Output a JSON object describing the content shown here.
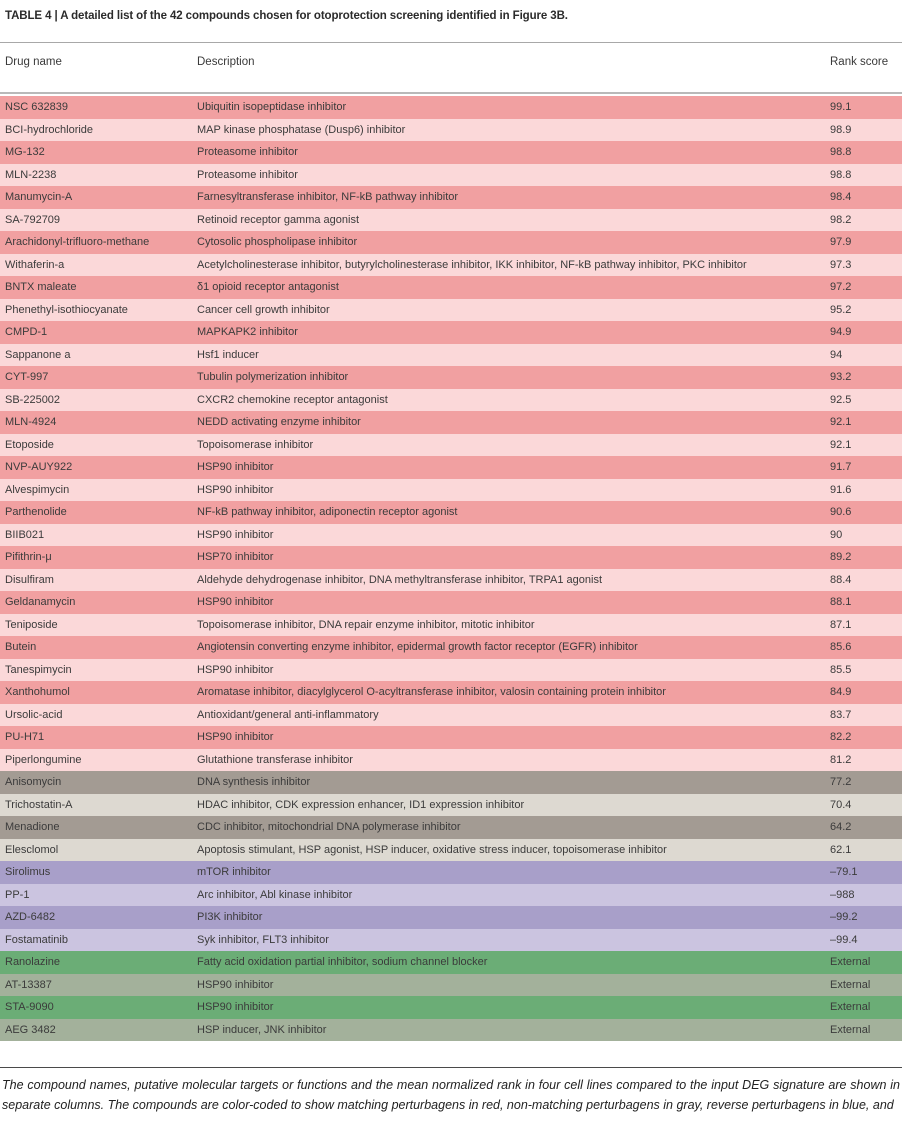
{
  "title": "TABLE 4 | A detailed list of the 42 compounds chosen for otoprotection screening identified in Figure 3B.",
  "table": {
    "columns": {
      "drug_name": "Drug name",
      "description": "Description",
      "rank_score": "Rank score"
    },
    "colors": {
      "red_dark": "#f1a0a1",
      "red_light": "#fbd8d9",
      "gray_dark": "#a39b93",
      "gray_light": "#ddd9d1",
      "blue_dark": "#a89fc9",
      "blue_light": "#cbc4e0",
      "green_dark": "#6bad76",
      "green_light": "#a3b19b"
    },
    "legend_meaning": {
      "red": "matching perturbagens",
      "gray": "non-matching perturbagens",
      "blue": "reverse perturbagens",
      "green": "external"
    },
    "rows": [
      {
        "name": "NSC 632839",
        "description": "Ubiquitin isopeptidase inhibitor",
        "score": "99.1",
        "color": "red_dark"
      },
      {
        "name": "BCI-hydrochloride",
        "description": "MAP kinase phosphatase (Dusp6) inhibitor",
        "score": "98.9",
        "color": "red_light"
      },
      {
        "name": "MG-132",
        "description": "Proteasome inhibitor",
        "score": "98.8",
        "color": "red_dark"
      },
      {
        "name": "MLN-2238",
        "description": "Proteasome inhibitor",
        "score": "98.8",
        "color": "red_light"
      },
      {
        "name": "Manumycin-A",
        "description": "Farnesyltransferase inhibitor, NF-kB pathway inhibitor",
        "score": "98.4",
        "color": "red_dark"
      },
      {
        "name": "SA-792709",
        "description": "Retinoid receptor gamma agonist",
        "score": "98.2",
        "color": "red_light"
      },
      {
        "name": "Arachidonyl-trifluoro-methane",
        "description": "Cytosolic phospholipase inhibitor",
        "score": "97.9",
        "color": "red_dark"
      },
      {
        "name": "Withaferin-a",
        "description": "Acetylcholinesterase inhibitor, butyrylcholinesterase inhibitor, IKK inhibitor, NF-kB pathway inhibitor, PKC inhibitor",
        "score": "97.3",
        "color": "red_light"
      },
      {
        "name": "BNTX maleate",
        "description": "δ1 opioid receptor antagonist",
        "score": "97.2",
        "color": "red_dark"
      },
      {
        "name": "Phenethyl-isothiocyanate",
        "description": "Cancer cell growth inhibitor",
        "score": "95.2",
        "color": "red_light"
      },
      {
        "name": "CMPD-1",
        "description": "MAPKAPK2 inhibitor",
        "score": "94.9",
        "color": "red_dark"
      },
      {
        "name": "Sappanone a",
        "description": "Hsf1 inducer",
        "score": "94",
        "color": "red_light"
      },
      {
        "name": "CYT-997",
        "description": "Tubulin polymerization inhibitor",
        "score": "93.2",
        "color": "red_dark"
      },
      {
        "name": "SB-225002",
        "description": "CXCR2 chemokine receptor antagonist",
        "score": "92.5",
        "color": "red_light"
      },
      {
        "name": "MLN-4924",
        "description": "NEDD activating enzyme inhibitor",
        "score": "92.1",
        "color": "red_dark"
      },
      {
        "name": "Etoposide",
        "description": "Topoisomerase inhibitor",
        "score": "92.1",
        "color": "red_light"
      },
      {
        "name": "NVP-AUY922",
        "description": "HSP90 inhibitor",
        "score": "91.7",
        "color": "red_dark"
      },
      {
        "name": "Alvespimycin",
        "description": "HSP90 inhibitor",
        "score": "91.6",
        "color": "red_light"
      },
      {
        "name": "Parthenolide",
        "description": "NF-kB pathway inhibitor, adiponectin receptor agonist",
        "score": "90.6",
        "color": "red_dark"
      },
      {
        "name": "BIIB021",
        "description": "HSP90 inhibitor",
        "score": "90",
        "color": "red_light"
      },
      {
        "name": "Pifithrin-μ",
        "description": "HSP70 inhibitor",
        "score": "89.2",
        "color": "red_dark"
      },
      {
        "name": "Disulfiram",
        "description": "Aldehyde dehydrogenase inhibitor, DNA methyltransferase inhibitor, TRPA1 agonist",
        "score": "88.4",
        "color": "red_light"
      },
      {
        "name": "Geldanamycin",
        "description": "HSP90 inhibitor",
        "score": "88.1",
        "color": "red_dark"
      },
      {
        "name": "Teniposide",
        "description": "Topoisomerase inhibitor, DNA repair enzyme inhibitor, mitotic inhibitor",
        "score": "87.1",
        "color": "red_light"
      },
      {
        "name": "Butein",
        "description": "Angiotensin converting enzyme inhibitor, epidermal growth factor receptor (EGFR) inhibitor",
        "score": "85.6",
        "color": "red_dark"
      },
      {
        "name": "Tanespimycin",
        "description": "HSP90 inhibitor",
        "score": "85.5",
        "color": "red_light"
      },
      {
        "name": "Xanthohumol",
        "description": "Aromatase inhibitor, diacylglycerol O-acyltransferase inhibitor, valosin containing protein inhibitor",
        "score": "84.9",
        "color": "red_dark"
      },
      {
        "name": "Ursolic-acid",
        "description": "Antioxidant/general anti-inflammatory",
        "score": "83.7",
        "color": "red_light"
      },
      {
        "name": "PU-H71",
        "description": "HSP90 inhibitor",
        "score": "82.2",
        "color": "red_dark"
      },
      {
        "name": "Piperlongumine",
        "description": "Glutathione transferase inhibitor",
        "score": "81.2",
        "color": "red_light"
      },
      {
        "name": "Anisomycin",
        "description": "DNA synthesis inhibitor",
        "score": "77.2",
        "color": "gray_dark"
      },
      {
        "name": "Trichostatin-A",
        "description": "HDAC inhibitor, CDK expression enhancer, ID1 expression inhibitor",
        "score": "70.4",
        "color": "gray_light"
      },
      {
        "name": "Menadione",
        "description": "CDC inhibitor, mitochondrial DNA polymerase inhibitor",
        "score": "64.2",
        "color": "gray_dark"
      },
      {
        "name": "Elesclomol",
        "description": "Apoptosis stimulant, HSP agonist, HSP inducer, oxidative stress inducer, topoisomerase inhibitor",
        "score": "62.1",
        "color": "gray_light"
      },
      {
        "name": "Sirolimus",
        "description": "mTOR inhibitor",
        "score": "–79.1",
        "color": "blue_dark"
      },
      {
        "name": "PP-1",
        "description": "Arc inhibitor, Abl kinase inhibitor",
        "score": "–988",
        "color": "blue_light"
      },
      {
        "name": "AZD-6482",
        "description": "PI3K inhibitor",
        "score": "–99.2",
        "color": "blue_dark"
      },
      {
        "name": "Fostamatinib",
        "description": "Syk inhibitor, FLT3 inhibitor",
        "score": "–99.4",
        "color": "blue_light"
      },
      {
        "name": "Ranolazine",
        "description": "Fatty acid oxidation partial inhibitor, sodium channel blocker",
        "score": "External",
        "color": "green_dark"
      },
      {
        "name": "AT-13387",
        "description": "HSP90 inhibitor",
        "score": "External",
        "color": "green_light"
      },
      {
        "name": "STA-9090",
        "description": "HSP90 inhibitor",
        "score": "External",
        "color": "green_dark"
      },
      {
        "name": "AEG 3482",
        "description": "HSP inducer, JNK inhibitor",
        "score": "External",
        "color": "green_light"
      }
    ]
  },
  "footnote": "The compound names, putative molecular targets or functions and the mean normalized rank in four cell lines compared to the input DEG signature are shown in separate columns. The compounds are color-coded to show matching perturbagens in red, non-matching perturbagens in gray, reverse perturbagens in blue, and"
}
